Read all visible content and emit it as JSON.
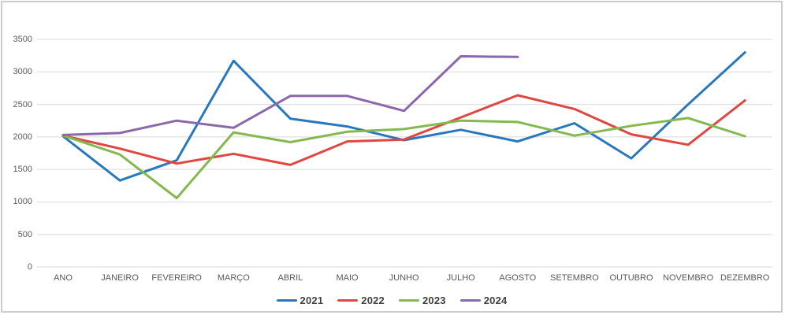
{
  "chart": {
    "background": "#FFFFFF",
    "border_color": "#CBCBCB",
    "gridline_color": "#D9D9D9",
    "axis_label_color": "#595959",
    "legend_label_color": "#404040"
  },
  "chart_data": {
    "type": "line",
    "title": "",
    "xlabel": "",
    "ylabel": "",
    "categories": [
      "ANO",
      "JANEIRO",
      "FEVEREIRO",
      "MARÇO",
      "ABRIL",
      "MAIO",
      "JUNHO",
      "JULHO",
      "AGOSTO",
      "SETEMBRO",
      "OUTUBRO",
      "NOVEMBRO",
      "DEZEMBRO"
    ],
    "series": [
      {
        "name": "2021",
        "color": "#2878BE",
        "values": [
          2010,
          1330,
          1640,
          3170,
          2280,
          2160,
          1950,
          2110,
          1930,
          2210,
          1670,
          2500,
          3300
        ]
      },
      {
        "name": "2022",
        "color": "#DF4740",
        "values": [
          2020,
          1820,
          1590,
          1740,
          1570,
          1930,
          1960,
          2300,
          2640,
          2430,
          2040,
          1880,
          2560
        ]
      },
      {
        "name": "2023",
        "color": "#84B850",
        "values": [
          2020,
          1730,
          1060,
          2070,
          1920,
          2080,
          2120,
          2250,
          2230,
          2020,
          2170,
          2290,
          2010
        ]
      },
      {
        "name": "2024",
        "color": "#8B68AC",
        "values": [
          2030,
          2060,
          2250,
          2140,
          2630,
          2630,
          2400,
          3240,
          3230,
          null,
          null,
          null,
          null
        ]
      }
    ],
    "ylim": [
      0,
      3500
    ],
    "yticks": [
      0,
      500,
      1000,
      1500,
      2000,
      2500,
      3000,
      3500
    ],
    "grid": "horizontal-only",
    "legend_position": "bottom",
    "legend_labels": [
      "2021",
      "2022",
      "2023",
      "2024"
    ]
  }
}
